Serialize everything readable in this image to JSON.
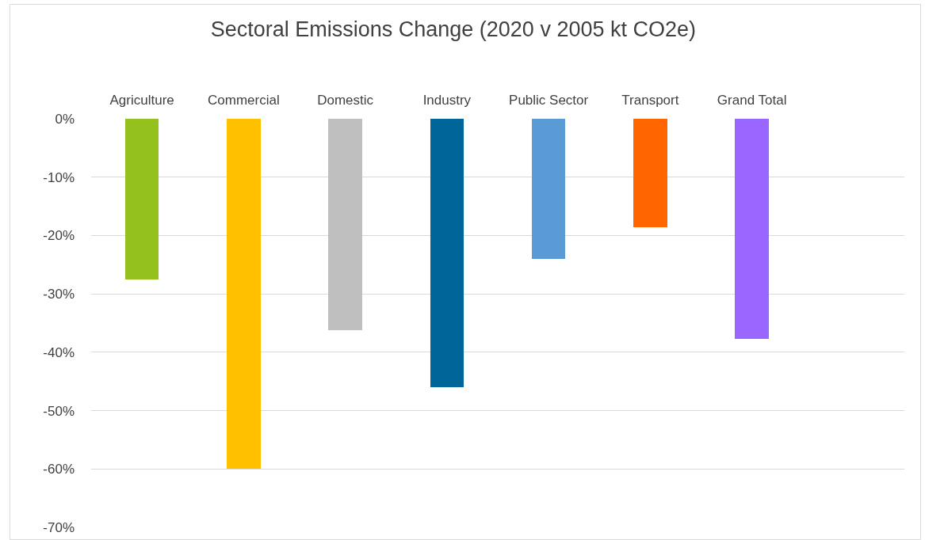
{
  "chart_data": {
    "type": "bar",
    "title": "Sectoral Emissions Change (2020 v 2005 kt CO2e)",
    "categories": [
      "Agriculture",
      "Commercial",
      "Domestic",
      "Industry",
      "Public Sector",
      "Transport",
      "Grand Total",
      null
    ],
    "values": [
      -27.5,
      -60,
      -36.2,
      -46,
      -24,
      -18.6,
      -37.7,
      null
    ],
    "colors": [
      "#95c11f",
      "#ffc000",
      "#bfbfbf",
      "#006699",
      "#5b9bd5",
      "#ff6600",
      "#9966ff",
      "#9966ff"
    ],
    "ylim": [
      -70,
      0
    ],
    "yticks": [
      {
        "value": 0,
        "label": "0%"
      },
      {
        "value": -10,
        "label": "-10%"
      },
      {
        "value": -20,
        "label": "-20%"
      },
      {
        "value": -30,
        "label": "-30%"
      },
      {
        "value": -40,
        "label": "-40%"
      },
      {
        "value": -50,
        "label": "-50%"
      },
      {
        "value": -60,
        "label": "-60%"
      },
      {
        "value": -70,
        "label": "-70%"
      }
    ],
    "grid": "y"
  }
}
